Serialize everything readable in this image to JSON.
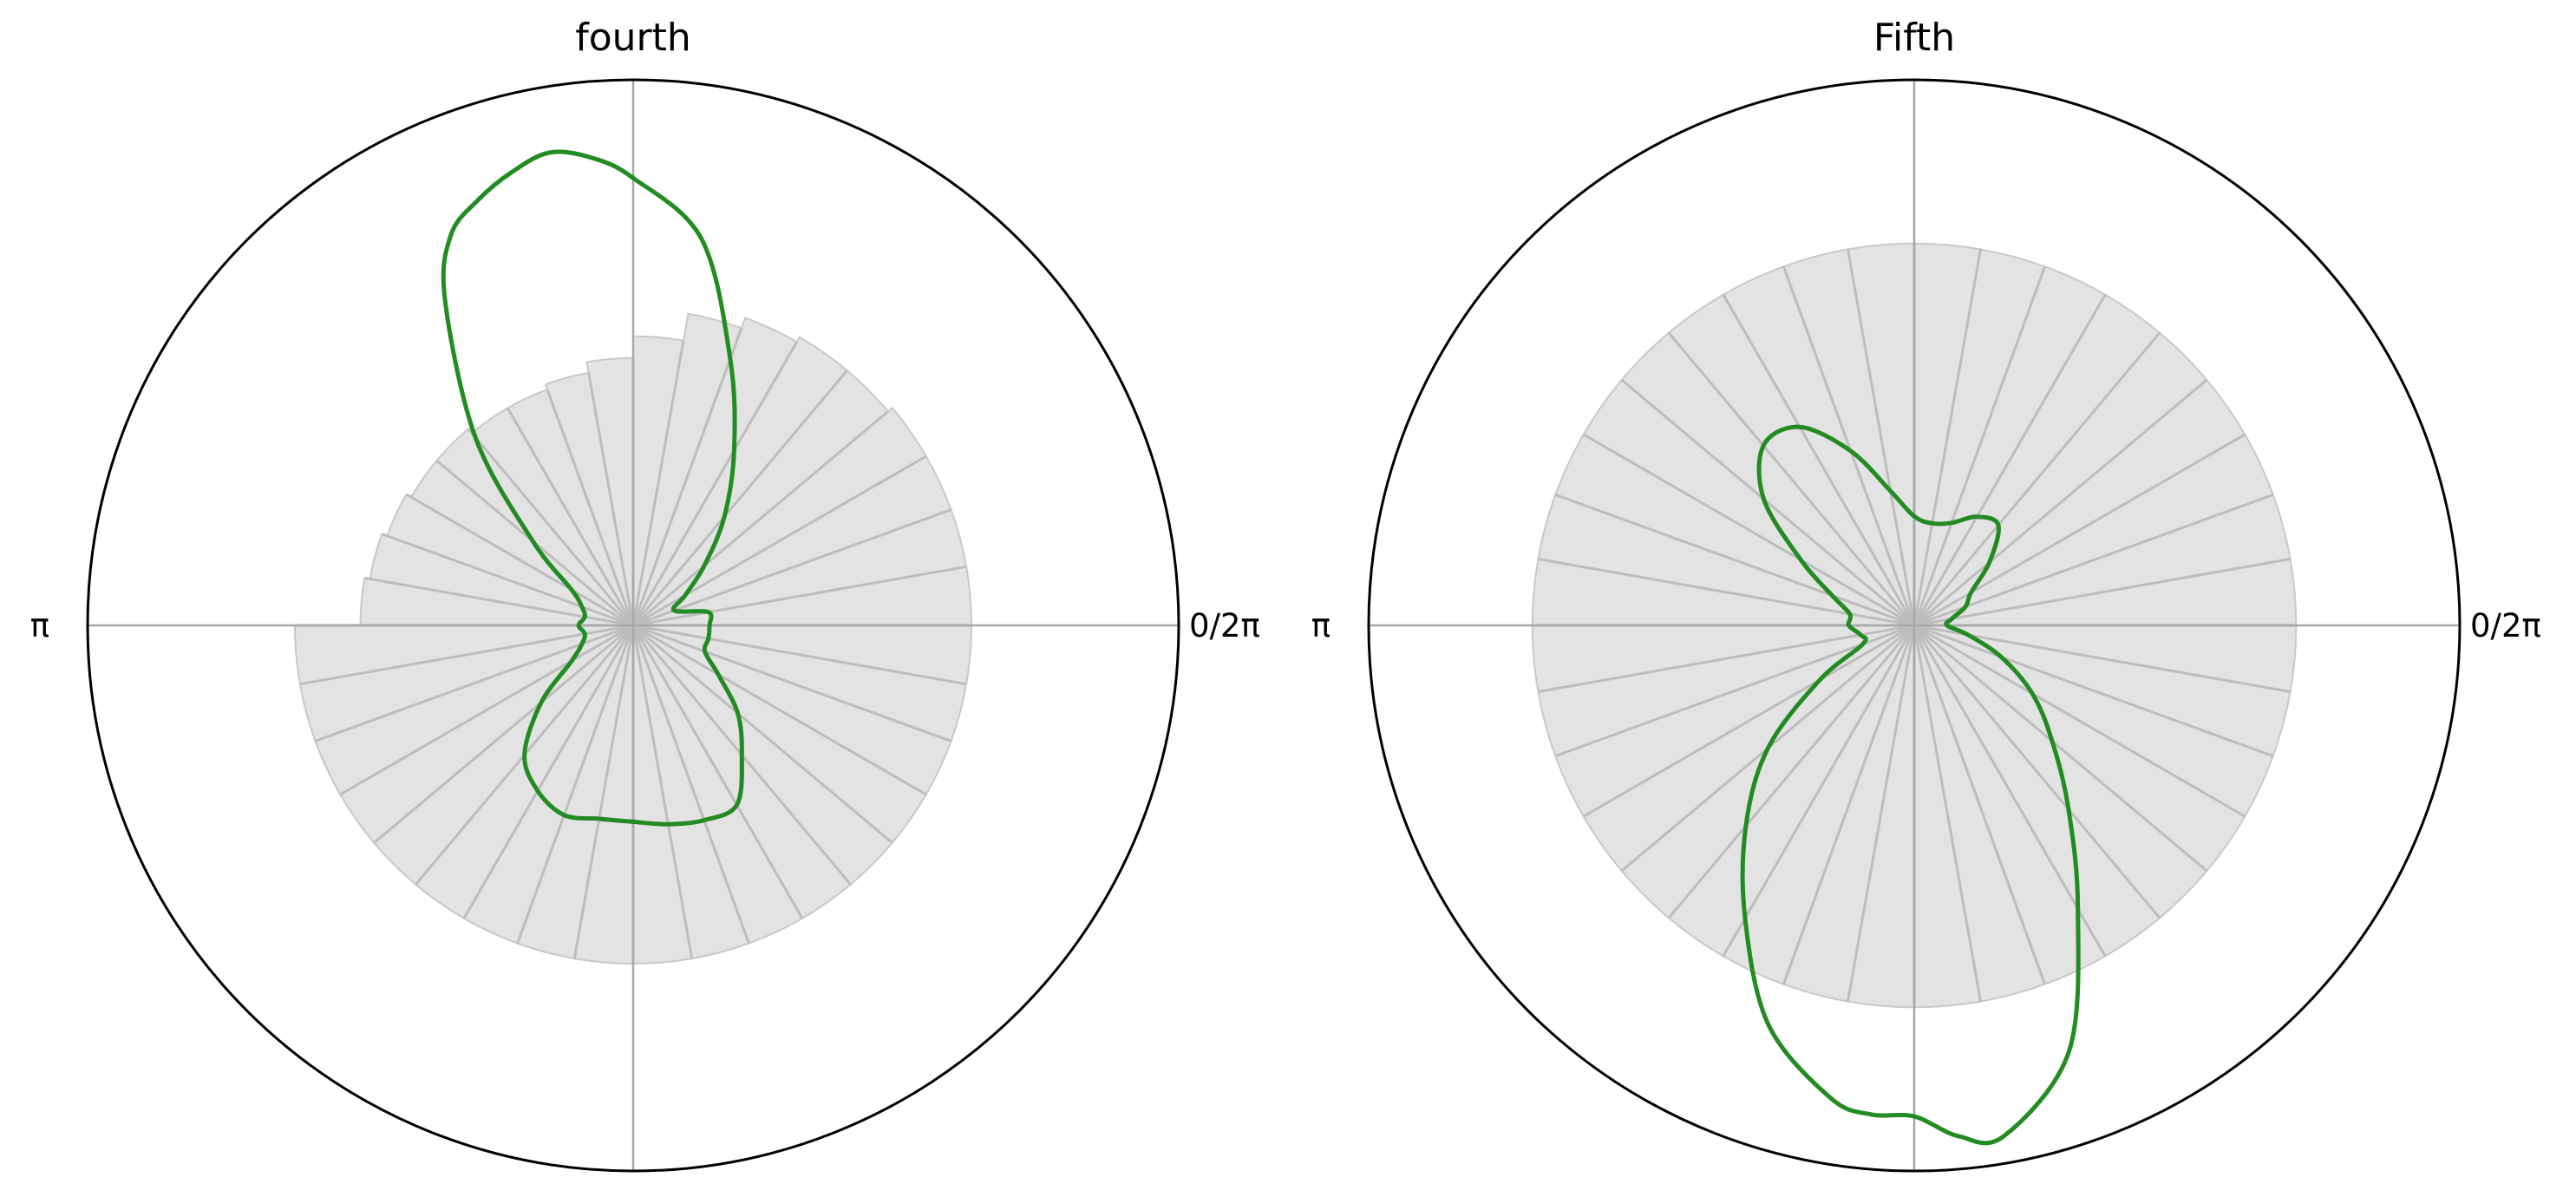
{
  "colors": {
    "bar_fill": "#e3e3e3",
    "bar_edge": "#c9c9c9",
    "spoke": "#bdbdbd",
    "axis_line": "#a8a8a8",
    "frame": "#000000",
    "curve": "#228b22",
    "background": "#ffffff"
  },
  "chart_data": [
    {
      "type": "polar",
      "title": "fourth",
      "angle_unit": "radians",
      "theta_tick_labels": {
        "right": "0/2π",
        "left": "π"
      },
      "grid": false,
      "r_max": 1.0,
      "histogram": {
        "bin_count": 36,
        "radii": [
          0.62,
          0.62,
          0.62,
          0.62,
          0.61,
          0.61,
          0.6,
          0.58,
          0.53,
          0.49,
          0.47,
          0.46,
          0.46,
          0.47,
          0.47,
          0.48,
          0.49,
          0.5,
          0.62,
          0.62,
          0.62,
          0.62,
          0.62,
          0.62,
          0.62,
          0.62,
          0.62,
          0.62,
          0.62,
          0.62,
          0.62,
          0.62,
          0.62,
          0.62,
          0.62,
          0.62
        ]
      },
      "density_curve": {
        "theta_deg": [
          0,
          10,
          20,
          30,
          40,
          50,
          60,
          70,
          80,
          90,
          95,
          100,
          105,
          110,
          115,
          120,
          130,
          140,
          150,
          160,
          170,
          180,
          190,
          200,
          210,
          220,
          230,
          240,
          250,
          260,
          270,
          280,
          290,
          300,
          310,
          320,
          330,
          340,
          350
        ],
        "r": [
          0.14,
          0.14,
          0.08,
          0.11,
          0.17,
          0.26,
          0.37,
          0.52,
          0.72,
          0.82,
          0.86,
          0.88,
          0.86,
          0.83,
          0.79,
          0.69,
          0.45,
          0.24,
          0.13,
          0.1,
          0.09,
          0.1,
          0.09,
          0.1,
          0.13,
          0.22,
          0.31,
          0.35,
          0.37,
          0.36,
          0.36,
          0.37,
          0.38,
          0.38,
          0.31,
          0.25,
          0.18,
          0.14,
          0.14
        ]
      }
    },
    {
      "type": "polar",
      "title": "Fifth",
      "angle_unit": "radians",
      "theta_tick_labels": {
        "right": "0/2π",
        "left": "π"
      },
      "grid": false,
      "r_max": 1.0,
      "histogram": {
        "bin_count": 36,
        "radii": [
          0.7,
          0.7,
          0.7,
          0.7,
          0.7,
          0.7,
          0.7,
          0.7,
          0.7,
          0.7,
          0.7,
          0.7,
          0.7,
          0.7,
          0.7,
          0.7,
          0.7,
          0.7,
          0.7,
          0.7,
          0.7,
          0.7,
          0.7,
          0.7,
          0.7,
          0.7,
          0.7,
          0.7,
          0.7,
          0.7,
          0.7,
          0.7,
          0.7,
          0.7,
          0.7,
          0.7
        ]
      },
      "density_curve": {
        "theta_deg": [
          0,
          10,
          20,
          30,
          40,
          50,
          60,
          70,
          80,
          90,
          100,
          110,
          120,
          130,
          140,
          150,
          160,
          170,
          180,
          190,
          200,
          210,
          220,
          230,
          240,
          250,
          260,
          265,
          270,
          275,
          280,
          290,
          300,
          310,
          320,
          330,
          340,
          350
        ],
        "r": [
          0.06,
          0.07,
          0.1,
          0.12,
          0.18,
          0.24,
          0.23,
          0.2,
          0.19,
          0.2,
          0.25,
          0.34,
          0.42,
          0.43,
          0.36,
          0.24,
          0.16,
          0.12,
          0.12,
          0.1,
          0.1,
          0.2,
          0.35,
          0.48,
          0.62,
          0.78,
          0.88,
          0.9,
          0.9,
          0.94,
          0.95,
          0.83,
          0.6,
          0.44,
          0.33,
          0.25,
          0.17,
          0.1
        ]
      }
    }
  ]
}
